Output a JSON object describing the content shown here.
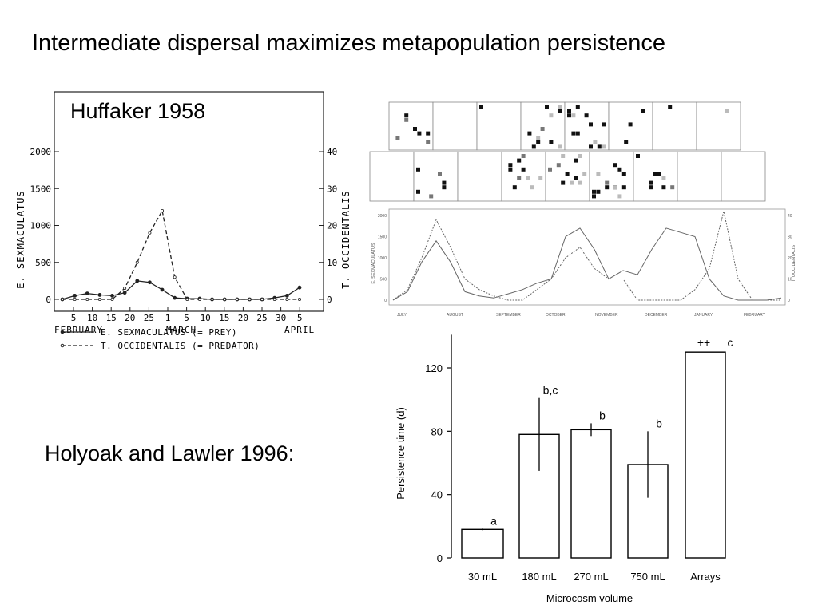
{
  "slide": {
    "title": "Intermediate dispersal maximizes metapopulation persistence",
    "huffaker_label": "Huffaker 1958",
    "holyoak_label": "Holyoak and Lawler 1996:"
  },
  "chart_data": [
    {
      "type": "line",
      "x_tick_labels": [
        "5",
        "10",
        "15",
        "20",
        "25",
        "1",
        "5",
        "10",
        "15",
        "20",
        "25",
        "30",
        "5"
      ],
      "month_labels": [
        "FEBRUARY",
        "MARCH",
        "APRIL"
      ],
      "ylabel_left": "E. SEXMACULATUS",
      "ylabel_right": "T. OCCIDENTALIS",
      "yticks_left": [
        "0",
        "500",
        "1000",
        "1500",
        "2000"
      ],
      "yticks_right": [
        "0",
        "10",
        "20",
        "30",
        "40"
      ],
      "ylim_left": [
        0,
        2000
      ],
      "ylim_right": [
        0,
        40
      ],
      "series": [
        {
          "name": "E. SEXMACULATUS (= PREY)",
          "axis": "left",
          "style": "solid",
          "values": [
            0,
            50,
            80,
            60,
            50,
            90,
            250,
            230,
            130,
            20,
            10,
            10,
            0,
            0,
            0,
            0,
            0,
            20,
            50,
            160
          ]
        },
        {
          "name": "T. OCCIDENTALIS (= PREDATOR)",
          "axis": "right",
          "style": "dashed",
          "values": [
            0,
            0,
            0,
            0,
            0,
            3,
            10,
            18,
            24,
            6,
            0,
            0,
            0,
            0,
            0,
            0,
            0,
            0,
            0,
            0
          ]
        }
      ],
      "legend": [
        {
          "text": "E. SEXMACULATUS (= PREY)",
          "style": "solid"
        },
        {
          "text": "T. OCCIDENTALIS (= PREDATOR)",
          "style": "dashed"
        }
      ],
      "colors": {
        "line": "#222222"
      }
    },
    {
      "type": "line",
      "ylabel_left": "E. SEXMACULATUS",
      "ylabel_right": "T. OCCIDENTALIS",
      "yticks_left": [
        "0",
        "500",
        "1000",
        "1500",
        "2000"
      ],
      "yticks_right": [
        "0",
        "10",
        "20",
        "30",
        "40"
      ],
      "month_labels": [
        "JULY",
        "AUGUST",
        "SEPTEMBER",
        "OCTOBER",
        "NOVEMBER",
        "DECEMBER",
        "JANUARY",
        "FEBRUARY"
      ],
      "series": [
        {
          "name": "E. SEXMACULATUS",
          "style": "solid",
          "values": [
            0,
            200,
            900,
            1400,
            900,
            200,
            100,
            50,
            150,
            250,
            400,
            500,
            1500,
            1700,
            1200,
            500,
            700,
            600,
            1200,
            1700,
            1600,
            1500,
            500,
            100,
            0,
            0,
            0,
            50
          ]
        },
        {
          "name": "T. OCCIDENTALIS",
          "style": "dashed",
          "values": [
            0,
            5,
            20,
            38,
            25,
            10,
            5,
            2,
            0,
            0,
            5,
            10,
            20,
            25,
            15,
            10,
            10,
            0,
            0,
            0,
            0,
            5,
            15,
            42,
            10,
            0,
            0,
            0
          ]
        }
      ]
    },
    {
      "type": "bar",
      "categories": [
        "30 mL",
        "180 mL",
        "270 mL",
        "750 mL",
        "Arrays"
      ],
      "values": [
        18,
        78,
        81,
        59,
        130
      ],
      "error_bars": [
        0.5,
        23,
        4,
        21,
        0
      ],
      "annotations": [
        "a",
        "b,c",
        "b",
        "b",
        "c"
      ],
      "extra_annotation": "++",
      "xlabel": "Microcosm volume",
      "ylabel": "Persistence time (d)",
      "yticks": [
        "0",
        "40",
        "80",
        "120"
      ],
      "ylim": [
        0,
        140
      ],
      "grid": false
    }
  ]
}
